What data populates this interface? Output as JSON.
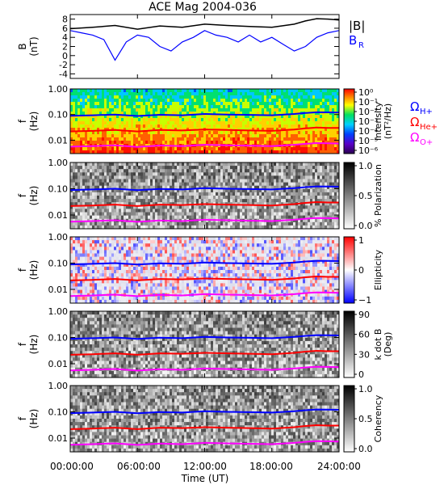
{
  "title": "ACE Mag 2004-036",
  "colors": {
    "btotal": "#000000",
    "br": "#0000ff",
    "h_plus": "#0000ff",
    "he_plus": "#ff0000",
    "o_plus": "#ff00ff"
  },
  "chart_data": [
    {
      "id": "magnetic-field",
      "type": "line",
      "ylabel_line1": "B",
      "ylabel_line2": "(nT)",
      "ylim": [
        -5,
        9
      ],
      "yticks": [
        "8",
        "6",
        "4",
        "2",
        "0",
        "-2",
        "-4"
      ],
      "yticks_values": [
        8,
        6,
        4,
        2,
        0,
        -2,
        -4
      ],
      "legend": {
        "btotal": "|B|",
        "br_main": "B",
        "br_sub": "R"
      },
      "series": [
        {
          "name": "|B|",
          "x_hours": [
            0,
            2,
            4,
            6,
            8,
            10,
            12,
            14,
            16,
            18,
            20,
            21,
            22,
            23,
            24
          ],
          "values": [
            5.9,
            6.2,
            6.6,
            5.8,
            6.5,
            6.2,
            6.9,
            6.6,
            6.4,
            6.2,
            6.9,
            7.6,
            8.1,
            8.0,
            7.8
          ]
        },
        {
          "name": "B_R",
          "x_hours": [
            0,
            1,
            2,
            3,
            4,
            5,
            6,
            7,
            8,
            9,
            10,
            11,
            12,
            13,
            14,
            15,
            16,
            17,
            18,
            19,
            20,
            21,
            22,
            23,
            24
          ],
          "values": [
            5.5,
            5.0,
            4.5,
            3.5,
            -1.0,
            3.0,
            4.5,
            4.0,
            2.0,
            1.0,
            3.0,
            4.0,
            5.5,
            4.5,
            4.0,
            3.0,
            4.5,
            3.0,
            4.0,
            2.5,
            1.0,
            2.0,
            4.0,
            5.0,
            5.5
          ]
        }
      ]
    },
    {
      "id": "intensity",
      "type": "heatmap",
      "ylabel_line1": "f",
      "ylabel_line2": "(Hz)",
      "ylim": [
        0.003,
        1.0
      ],
      "yscale": "log",
      "yticks": [
        "1.00",
        "0.10",
        "0.01"
      ],
      "yticks_values": [
        1.0,
        0.1,
        0.01
      ],
      "colorbar": {
        "title_line1": "Intensity",
        "title_line2": "(nT²/Hz)",
        "ticks": [
          "10⁰",
          "10⁻¹",
          "10⁻²",
          "10⁻³",
          "10⁻⁴",
          "10⁻⁵",
          "10⁻⁶"
        ],
        "palette": "rainbow"
      },
      "legend": {
        "h": "Ω",
        "h_sub": "H+",
        "he": "Ω",
        "he_sub": "He+",
        "o": "Ω",
        "o_sub": "O+"
      }
    },
    {
      "id": "polarization",
      "type": "heatmap",
      "ylabel_line1": "f",
      "ylabel_line2": "(Hz)",
      "ylim": [
        0.003,
        1.0
      ],
      "yscale": "log",
      "yticks": [
        "1.00",
        "0.10",
        "0.01"
      ],
      "yticks_values": [
        1.0,
        0.1,
        0.01
      ],
      "colorbar": {
        "title_line1": "% Polarization",
        "title_line2": "",
        "ticks": [
          "1.0",
          "0.5",
          "0.0"
        ],
        "palette": "gray"
      }
    },
    {
      "id": "ellipticity",
      "type": "heatmap",
      "ylabel_line1": "f",
      "ylabel_line2": "(Hz)",
      "ylim": [
        0.003,
        1.0
      ],
      "yscale": "log",
      "yticks": [
        "1.00",
        "0.10",
        "0.01"
      ],
      "yticks_values": [
        1.0,
        0.1,
        0.01
      ],
      "colorbar": {
        "title_line1": "Ellipticity",
        "title_line2": "",
        "ticks": [
          "1",
          "0",
          "−1"
        ],
        "palette": "bluewhitered"
      }
    },
    {
      "id": "k-dot-b",
      "type": "heatmap",
      "ylabel_line1": "f",
      "ylabel_line2": "(Hz)",
      "ylim": [
        0.003,
        1.0
      ],
      "yscale": "log",
      "yticks": [
        "1.00",
        "0.10",
        "0.01"
      ],
      "yticks_values": [
        1.0,
        0.1,
        0.01
      ],
      "colorbar": {
        "title_line1": "k dot B",
        "title_line2": "(Deg)",
        "ticks": [
          "90",
          "60",
          "30",
          "0"
        ],
        "palette": "gray"
      }
    },
    {
      "id": "coherency",
      "type": "heatmap",
      "ylabel_line1": "f",
      "ylabel_line2": "(Hz)",
      "ylim": [
        0.003,
        1.0
      ],
      "yscale": "log",
      "yticks": [
        "1.00",
        "0.10",
        "0.01"
      ],
      "yticks_values": [
        1.0,
        0.1,
        0.01
      ],
      "colorbar": {
        "title_line1": "Coherency",
        "title_line2": "",
        "ticks": [
          "1.0",
          "0.5",
          "0.0"
        ],
        "palette": "gray"
      }
    }
  ],
  "gyrofrequency_lines": {
    "x_hours": [
      0,
      2,
      4,
      6,
      8,
      10,
      12,
      14,
      16,
      18,
      20,
      21,
      22,
      23,
      24
    ],
    "h_plus_hz": [
      0.089,
      0.094,
      0.1,
      0.088,
      0.098,
      0.094,
      0.105,
      0.1,
      0.097,
      0.094,
      0.105,
      0.115,
      0.123,
      0.122,
      0.119
    ],
    "he_plus_hz": [
      0.022,
      0.023,
      0.025,
      0.022,
      0.025,
      0.024,
      0.026,
      0.025,
      0.024,
      0.023,
      0.026,
      0.029,
      0.031,
      0.03,
      0.03
    ],
    "o_plus_hz": [
      0.0056,
      0.0059,
      0.0063,
      0.0055,
      0.0062,
      0.0059,
      0.0066,
      0.0063,
      0.0061,
      0.0059,
      0.0066,
      0.0072,
      0.0077,
      0.0076,
      0.0074
    ]
  },
  "x_axis": {
    "label": "Time (UT)",
    "ticks": [
      "00:00:00",
      "06:00:00",
      "12:00:00",
      "18:00:00",
      "24:00:00"
    ],
    "tick_hours": [
      0,
      6,
      12,
      18,
      24
    ],
    "range_hours": [
      0,
      24
    ]
  }
}
